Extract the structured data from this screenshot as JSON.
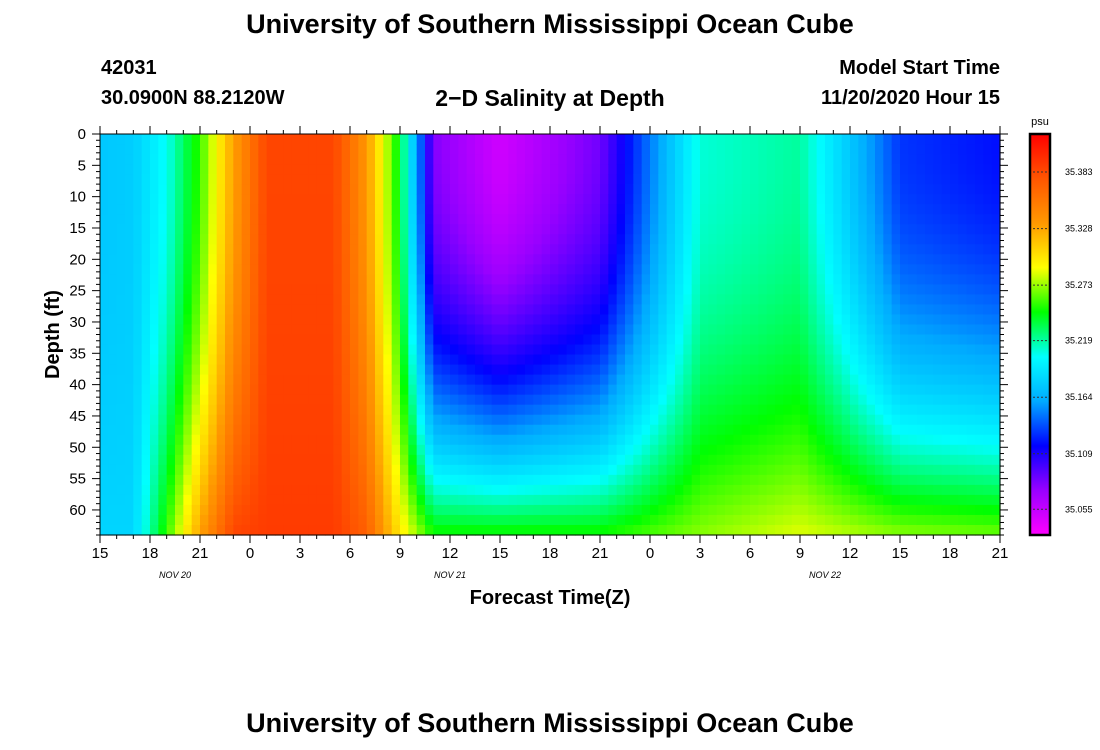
{
  "header": {
    "title": "University of Southern Mississippi Ocean Cube",
    "station_id": "42031",
    "coordinates": "30.0900N 88.2120W",
    "plot_title": "2−D Salinity at Depth",
    "model_start_label": "Model Start Time",
    "model_start_value": "11/20/2020 Hour 15"
  },
  "footer": {
    "title": "University of Southern Mississippi Ocean Cube"
  },
  "chart_data": {
    "type": "heatmap",
    "title": "2−D Salinity at Depth",
    "xlabel": "Forecast Time(Z)",
    "ylabel": "Depth (ft)",
    "x_tick_labels": [
      "15",
      "18",
      "21",
      "0",
      "3",
      "6",
      "9",
      "12",
      "15",
      "18",
      "21",
      "0",
      "3",
      "6",
      "9",
      "12",
      "15",
      "18",
      "21"
    ],
    "x_tick_hours": [
      0,
      3,
      6,
      9,
      12,
      15,
      18,
      21,
      24,
      27,
      30,
      33,
      36,
      39,
      42,
      45,
      48,
      51,
      54
    ],
    "date_labels": [
      {
        "label": "NOV  20",
        "hour": 4.5
      },
      {
        "label": "NOV  21",
        "hour": 21
      },
      {
        "label": "NOV  22",
        "hour": 43.5
      }
    ],
    "xlim_hours": [
      0,
      54
    ],
    "y_ticks": [
      0,
      5,
      10,
      15,
      20,
      25,
      30,
      35,
      40,
      45,
      50,
      55,
      60
    ],
    "ylim": [
      0,
      64
    ],
    "colorbar": {
      "unit": "psu",
      "tick_labels": [
        "35.383",
        "35.328",
        "35.273",
        "35.219",
        "35.164",
        "35.109",
        "35.055"
      ],
      "tick_values": [
        35.383,
        35.328,
        35.273,
        35.219,
        35.164,
        35.109,
        35.055
      ],
      "range": [
        35.03,
        35.42
      ],
      "palette": [
        "#ff00ff",
        "#9900ff",
        "#0000ff",
        "#00aaff",
        "#00ffff",
        "#00ff00",
        "#ffff00",
        "#ff9900",
        "#ff5500",
        "#ff0000"
      ]
    },
    "salinity_psu_by_time": [
      {
        "hour": 0,
        "surface": 35.175,
        "bottom": 35.182
      },
      {
        "hour": 2,
        "surface": 35.178,
        "bottom": 35.182
      },
      {
        "hour": 4,
        "surface": 35.205,
        "bottom": 35.255
      },
      {
        "hour": 6,
        "surface": 35.255,
        "bottom": 35.33
      },
      {
        "hour": 8,
        "surface": 35.33,
        "bottom": 35.385
      },
      {
        "hour": 10,
        "surface": 35.385,
        "bottom": 35.39
      },
      {
        "hour": 14,
        "surface": 35.385,
        "bottom": 35.39
      },
      {
        "hour": 16,
        "surface": 35.335,
        "bottom": 35.37
      },
      {
        "hour": 18,
        "surface": 35.24,
        "bottom": 35.3
      },
      {
        "hour": 20,
        "surface": 35.08,
        "bottom": 35.25
      },
      {
        "hour": 24,
        "surface": 35.05,
        "bottom": 35.25
      },
      {
        "hour": 30,
        "surface": 35.085,
        "bottom": 35.25
      },
      {
        "hour": 36,
        "surface": 35.21,
        "bottom": 35.27
      },
      {
        "hour": 42,
        "surface": 35.22,
        "bottom": 35.285
      },
      {
        "hour": 48,
        "surface": 35.13,
        "bottom": 35.27
      },
      {
        "hour": 54,
        "surface": 35.12,
        "bottom": 35.265
      }
    ],
    "annotations": []
  }
}
